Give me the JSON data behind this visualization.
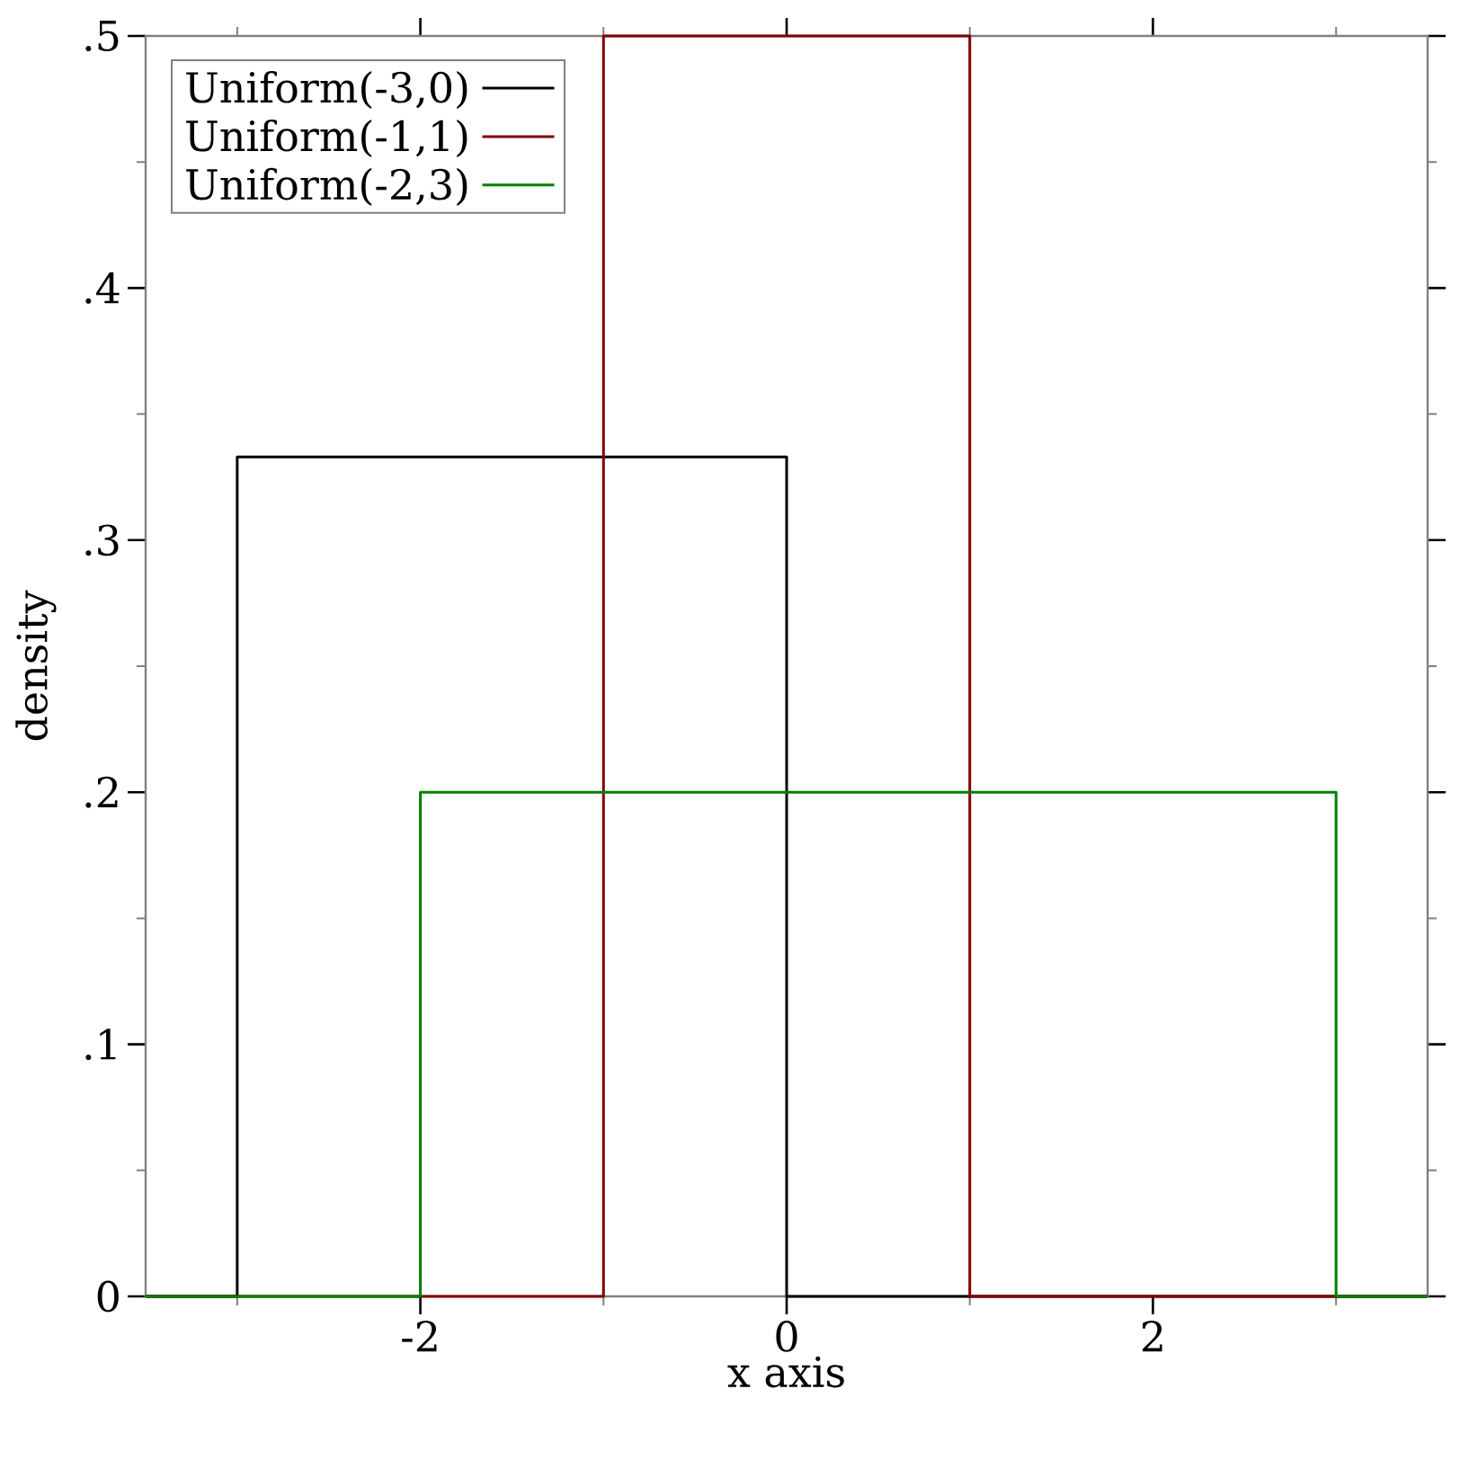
{
  "chart_data": {
    "type": "line",
    "xlabel": "x axis",
    "ylabel": "density",
    "legend": "top left",
    "marker": "none",
    "xlim": [
      -3.5,
      3.5
    ],
    "ylim": [
      0,
      0.5
    ],
    "xticks": [
      {
        "value": -3,
        "label": null
      },
      -2,
      {
        "value": -1,
        "label": null
      },
      0,
      {
        "value": 1,
        "label": null
      },
      2,
      {
        "value": 3,
        "label": null
      }
    ],
    "yticks": [
      0,
      {
        "value": 0.05,
        "label": null
      },
      {
        "value": 0.1,
        "label": ".1"
      },
      {
        "value": 0.15,
        "label": null
      },
      {
        "value": 0.2,
        "label": ".2"
      },
      {
        "value": 0.25,
        "label": null
      },
      {
        "value": 0.3,
        "label": ".3"
      },
      {
        "value": 0.35,
        "label": null
      },
      {
        "value": 0.4,
        "label": ".4"
      },
      {
        "value": 0.45,
        "label": null
      },
      {
        "value": 0.5,
        "label": ".5"
      }
    ],
    "series": [
      {
        "name": "Uniform(-3,0)",
        "color": "#000000",
        "x": [
          -3.5,
          -3,
          -3,
          0,
          0,
          3.5
        ],
        "values": [
          0,
          0,
          0.333,
          0.333,
          0,
          0
        ]
      },
      {
        "name": "Uniform(-1,1)",
        "color": "#800000",
        "x": [
          -3.5,
          -1,
          -1,
          1,
          1,
          3.5
        ],
        "values": [
          0,
          0,
          0.5,
          0.5,
          0,
          0
        ]
      },
      {
        "name": "Uniform(-2,3)",
        "color": "#008000",
        "x": [
          -3.5,
          -2,
          -2,
          3,
          3,
          3.5
        ],
        "values": [
          0,
          0,
          0.2,
          0.2,
          0,
          0
        ]
      }
    ]
  }
}
